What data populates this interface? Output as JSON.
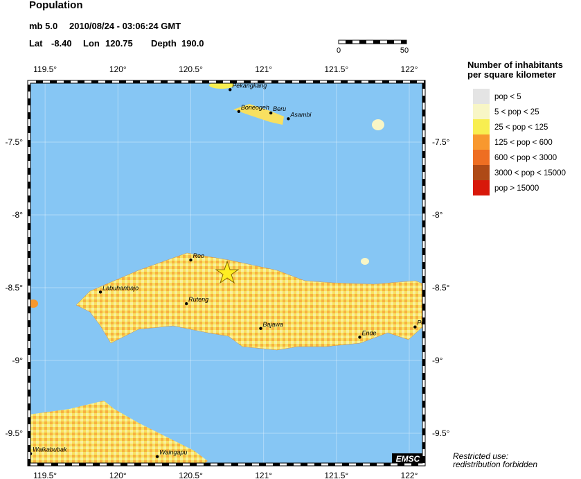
{
  "header": {
    "title": "Population",
    "magnitude": "mb 5.0",
    "time": "2010/08/24 - 03:06:24 GMT",
    "lat": {
      "label": "Lat",
      "value": "-8.40"
    },
    "lon": {
      "label": "Lon",
      "value": "120.75"
    },
    "depth": {
      "label": "Depth",
      "value": "190.0"
    }
  },
  "scale_bar": {
    "labels": [
      "0",
      "50"
    ]
  },
  "map": {
    "lonlim": [
      119.39,
      122.1
    ],
    "latlim": [
      -7.086,
      -9.714
    ],
    "lonticks": [
      {
        "value": 119.5,
        "label": "119.5°"
      },
      {
        "value": 120,
        "label": "120°"
      },
      {
        "value": 120.5,
        "label": "120.5°"
      },
      {
        "value": 121,
        "label": "121°"
      },
      {
        "value": 121.5,
        "label": "121.5°"
      },
      {
        "value": 122,
        "label": "122°"
      }
    ],
    "latticks": [
      {
        "value": -7.5,
        "label": "-7.5°"
      },
      {
        "value": -8,
        "label": "-8°"
      },
      {
        "value": -8.5,
        "label": "-8.5°"
      },
      {
        "value": -9,
        "label": "-9°"
      },
      {
        "value": -9.5,
        "label": "-9.5°"
      }
    ],
    "cities": [
      {
        "name": "Pekangkang",
        "lon": 120.77,
        "lat": -7.14
      },
      {
        "name": "Boneogeh",
        "lon": 120.83,
        "lat": -7.29
      },
      {
        "name": "Beru",
        "lon": 121.05,
        "lat": -7.3
      },
      {
        "name": "Asambi",
        "lon": 121.17,
        "lat": -7.34
      },
      {
        "name": "Reo",
        "lon": 120.5,
        "lat": -8.31
      },
      {
        "name": "Labuhanbajo",
        "lon": 119.88,
        "lat": -8.53
      },
      {
        "name": "Ruteng",
        "lon": 120.47,
        "lat": -8.61
      },
      {
        "name": "Bajawa",
        "lon": 120.98,
        "lat": -8.78
      },
      {
        "name": "Ende",
        "lon": 121.66,
        "lat": -8.84
      },
      {
        "name": "Po",
        "lon": 122.04,
        "lat": -8.77
      },
      {
        "name": "Waikabubak",
        "lon": 119.4,
        "lat": -9.64
      },
      {
        "name": "Waingapu",
        "lon": 120.27,
        "lat": -9.66
      }
    ],
    "brand": "EMSC"
  },
  "legend": {
    "title": [
      "Number of inhabitants",
      "per square kilometer"
    ],
    "entries": [
      {
        "label": "pop < 5",
        "color": "#e4e4e4"
      },
      {
        "label": "5 < pop < 25",
        "color": "#f8f6c6"
      },
      {
        "label": "25 < pop < 125",
        "color": "#f8ee50"
      },
      {
        "label": "125 < pop < 600",
        "color": "#f8982e"
      },
      {
        "label": "600 < pop < 3000",
        "color": "#ee6e22"
      },
      {
        "label": "3000 < pop < 15000",
        "color": "#ae4a16"
      },
      {
        "label": "pop > 15000",
        "color": "#d8180a"
      }
    ]
  },
  "notice": [
    "Restricted use:",
    "redistribution forbidden"
  ]
}
